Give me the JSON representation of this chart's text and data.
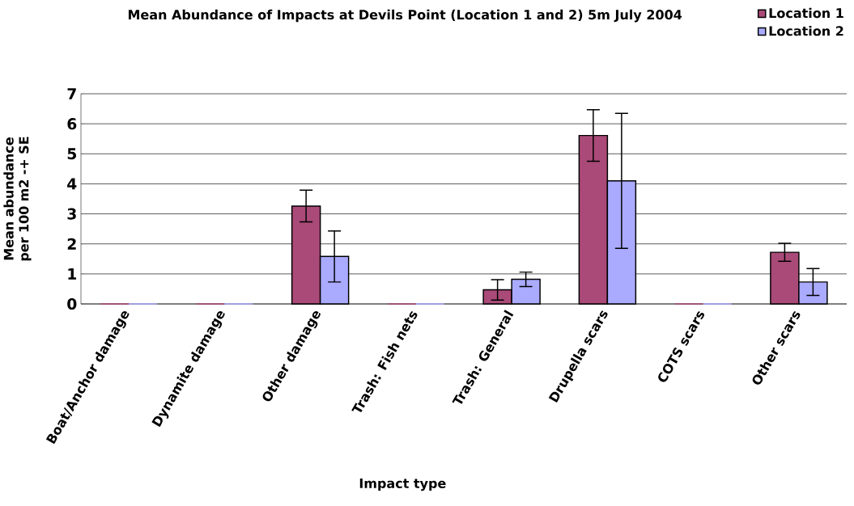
{
  "chart_data": {
    "type": "bar",
    "title": "Mean Abundance of Impacts at Devils Point (Location 1 and 2) 5m July 2004",
    "xlabel": "Impact type",
    "ylabel": "Mean abundance per 100 m2 -+ SE",
    "categories": [
      "Boat/Anchor damage",
      "Dynamite damage",
      "Other damage",
      "Trash: Fish nets",
      "Trash: General",
      "Drupella scars",
      "COTS scars",
      "Other scars"
    ],
    "series": [
      {
        "name": "Location 1",
        "color": "#aa4a78",
        "values": [
          0,
          0,
          3.26,
          0,
          0.47,
          5.61,
          0,
          1.72
        ],
        "errors": [
          null,
          null,
          0.53,
          null,
          0.34,
          0.86,
          null,
          0.3
        ]
      },
      {
        "name": "Location 2",
        "color": "#aaaaff",
        "values": [
          0,
          0,
          1.58,
          0,
          0.82,
          4.1,
          0,
          0.73
        ],
        "errors": [
          null,
          null,
          0.85,
          null,
          0.24,
          2.25,
          null,
          0.45
        ]
      }
    ],
    "ylim": [
      0,
      7
    ],
    "yticks": [
      0,
      1,
      2,
      3,
      4,
      5,
      6,
      7
    ],
    "grid": "y",
    "legend": "top right"
  }
}
